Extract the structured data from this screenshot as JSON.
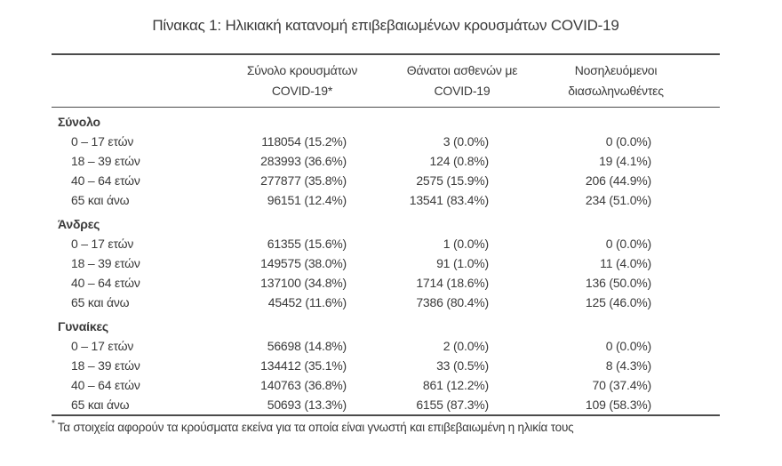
{
  "title": "Πίνακας 1: Ηλικιακή κατανομή επιβεβαιωμένων κρουσμάτων COVID-19",
  "colors": {
    "text": "#3a3a3a",
    "border": "#4b4b4b",
    "background": "#ffffff"
  },
  "table": {
    "columns": [
      {
        "line1": "Σύνολο κρουσμάτων",
        "line2": "COVID-19*"
      },
      {
        "line1": "Θάνατοι ασθενών με",
        "line2": "COVID-19"
      },
      {
        "line1": "Νοσηλευόμενοι",
        "line2": "διασωληνωθέντες"
      }
    ],
    "sections": [
      {
        "label": "Σύνολο",
        "rows": [
          {
            "age": "0 – 17 ετών",
            "cases": "118054 (15.2%)",
            "deaths": "3 (0.0%)",
            "intubated": "0 (0.0%)"
          },
          {
            "age": "18 – 39 ετών",
            "cases": "283993 (36.6%)",
            "deaths": "124 (0.8%)",
            "intubated": "19 (4.1%)"
          },
          {
            "age": "40 – 64 ετών",
            "cases": "277877 (35.8%)",
            "deaths": "2575 (15.9%)",
            "intubated": "206 (44.9%)"
          },
          {
            "age": "65 και άνω",
            "cases": "96151 (12.4%)",
            "deaths": "13541 (83.4%)",
            "intubated": "234 (51.0%)"
          }
        ]
      },
      {
        "label": "Άνδρες",
        "rows": [
          {
            "age": "0 – 17 ετών",
            "cases": "61355 (15.6%)",
            "deaths": "1 (0.0%)",
            "intubated": "0 (0.0%)"
          },
          {
            "age": "18 – 39 ετών",
            "cases": "149575 (38.0%)",
            "deaths": "91 (1.0%)",
            "intubated": "11 (4.0%)"
          },
          {
            "age": "40 – 64 ετών",
            "cases": "137100 (34.8%)",
            "deaths": "1714 (18.6%)",
            "intubated": "136 (50.0%)"
          },
          {
            "age": "65 και άνω",
            "cases": "45452 (11.6%)",
            "deaths": "7386 (80.4%)",
            "intubated": "125 (46.0%)"
          }
        ]
      },
      {
        "label": "Γυναίκες",
        "rows": [
          {
            "age": "0 – 17 ετών",
            "cases": "56698 (14.8%)",
            "deaths": "2 (0.0%)",
            "intubated": "0 (0.0%)"
          },
          {
            "age": "18 – 39 ετών",
            "cases": "134412 (35.1%)",
            "deaths": "33 (0.5%)",
            "intubated": "8 (4.3%)"
          },
          {
            "age": "40 – 64 ετών",
            "cases": "140763 (36.8%)",
            "deaths": "861 (12.2%)",
            "intubated": "70 (37.4%)"
          },
          {
            "age": "65 και άνω",
            "cases": "50693 (13.3%)",
            "deaths": "6155 (87.3%)",
            "intubated": "109 (58.3%)"
          }
        ]
      }
    ]
  },
  "footnote": {
    "marker": "*",
    "text": "Τα στοιχεία αφορούν τα κρούσματα εκείνα για τα οποία είναι γνωστή και επιβεβαιωμένη η ηλικία τους"
  }
}
